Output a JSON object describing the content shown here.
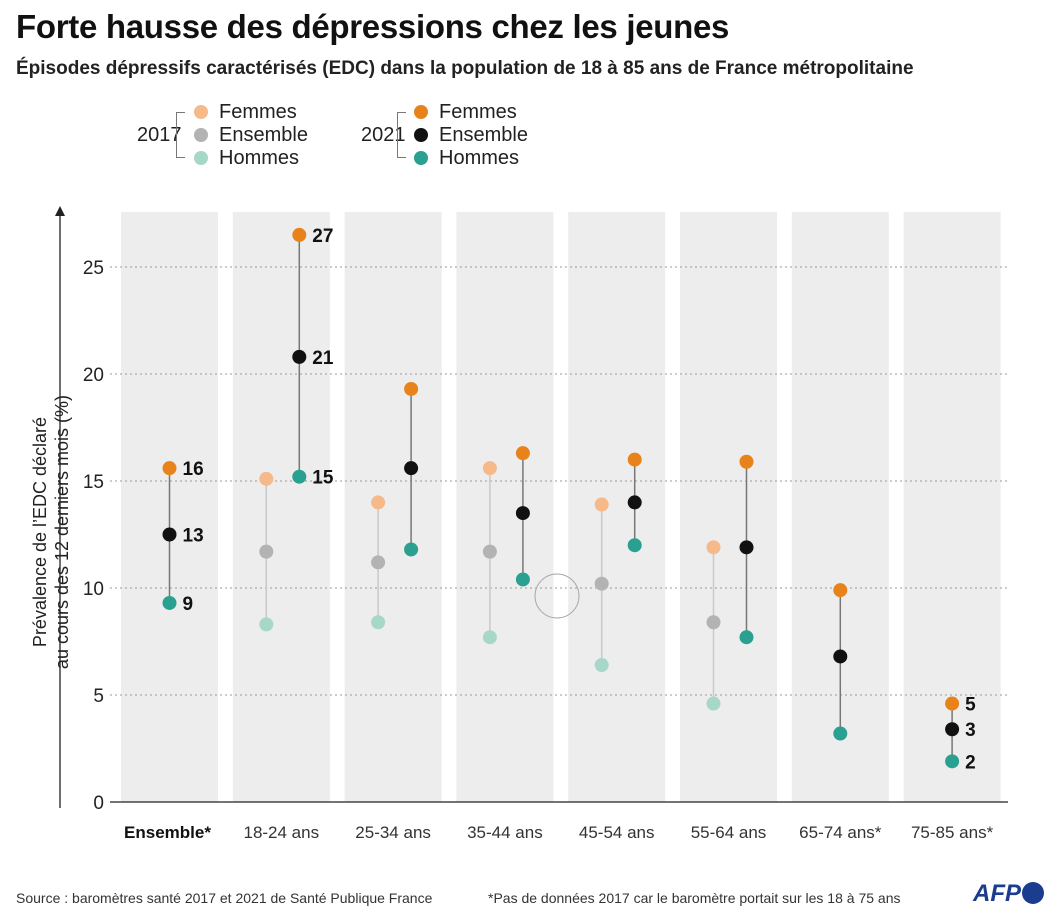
{
  "title": "Forte hausse des dépressions chez les jeunes",
  "subtitle": "Épisodes dépressifs caractérisés (EDC) dans la population de 18 à 85 ans de France métropolitaine",
  "legend": {
    "year_2017": "2017",
    "year_2021": "2021",
    "femmes": "Femmes",
    "ensemble": "Ensemble",
    "hommes": "Hommes"
  },
  "footer": {
    "source": "Source : baromètres santé 2017 et 2021 de Santé Publique France",
    "note": "*Pas de données 2017 car le baromètre portait sur les 18 à 75 ans"
  },
  "logo": "AFP",
  "colors": {
    "femmes_2017": "#f5b98a",
    "ensemble_2017": "#b3b3b3",
    "hommes_2017": "#a6d7c8",
    "femmes_2021": "#e8821a",
    "ensemble_2021": "#111111",
    "hommes_2021": "#2aa090",
    "band": "#ededed"
  },
  "chart_data": {
    "type": "scatter",
    "ylabel_line1": "Prévalence de l’EDC déclaré",
    "ylabel_line2": "au cours des 12 derniers mois (%)",
    "ylim": [
      0,
      27
    ],
    "yticks": [
      0,
      5,
      10,
      15,
      20,
      25
    ],
    "grid": "dotted horizontal",
    "categories": [
      "Ensemble*",
      "18-24 ans",
      "25-34 ans",
      "35-44 ans",
      "45-54 ans",
      "55-64 ans",
      "65-74 ans*",
      "75-85 ans*"
    ],
    "series": [
      {
        "name": "2017 Femmes",
        "values": [
          null,
          15.1,
          14.0,
          15.6,
          13.9,
          11.9,
          null,
          null
        ]
      },
      {
        "name": "2017 Ensemble",
        "values": [
          null,
          11.7,
          11.2,
          11.7,
          10.2,
          8.4,
          null,
          null
        ]
      },
      {
        "name": "2017 Hommes",
        "values": [
          null,
          8.3,
          8.4,
          7.7,
          6.4,
          4.6,
          null,
          null
        ]
      },
      {
        "name": "2021 Femmes",
        "values": [
          15.6,
          26.5,
          19.3,
          16.3,
          16.0,
          15.9,
          9.9,
          4.6
        ]
      },
      {
        "name": "2021 Ensemble",
        "values": [
          12.5,
          20.8,
          15.6,
          13.5,
          14.0,
          11.9,
          6.8,
          3.4
        ]
      },
      {
        "name": "2021 Hommes",
        "values": [
          9.3,
          15.2,
          11.8,
          10.4,
          12.0,
          7.7,
          3.2,
          1.9
        ]
      }
    ],
    "data_labels": [
      {
        "category": "Ensemble*",
        "series": "2021 Femmes",
        "text": "16"
      },
      {
        "category": "Ensemble*",
        "series": "2021 Ensemble",
        "text": "13"
      },
      {
        "category": "Ensemble*",
        "series": "2021 Hommes",
        "text": "9"
      },
      {
        "category": "18-24 ans",
        "series": "2021 Femmes",
        "text": "27"
      },
      {
        "category": "18-24 ans",
        "series": "2021 Ensemble",
        "text": "21"
      },
      {
        "category": "18-24 ans",
        "series": "2021 Hommes",
        "text": "15"
      },
      {
        "category": "75-85 ans*",
        "series": "2021 Femmes",
        "text": "5"
      },
      {
        "category": "75-85 ans*",
        "series": "2021 Ensemble",
        "text": "3"
      },
      {
        "category": "75-85 ans*",
        "series": "2021 Hommes",
        "text": "2"
      }
    ]
  }
}
